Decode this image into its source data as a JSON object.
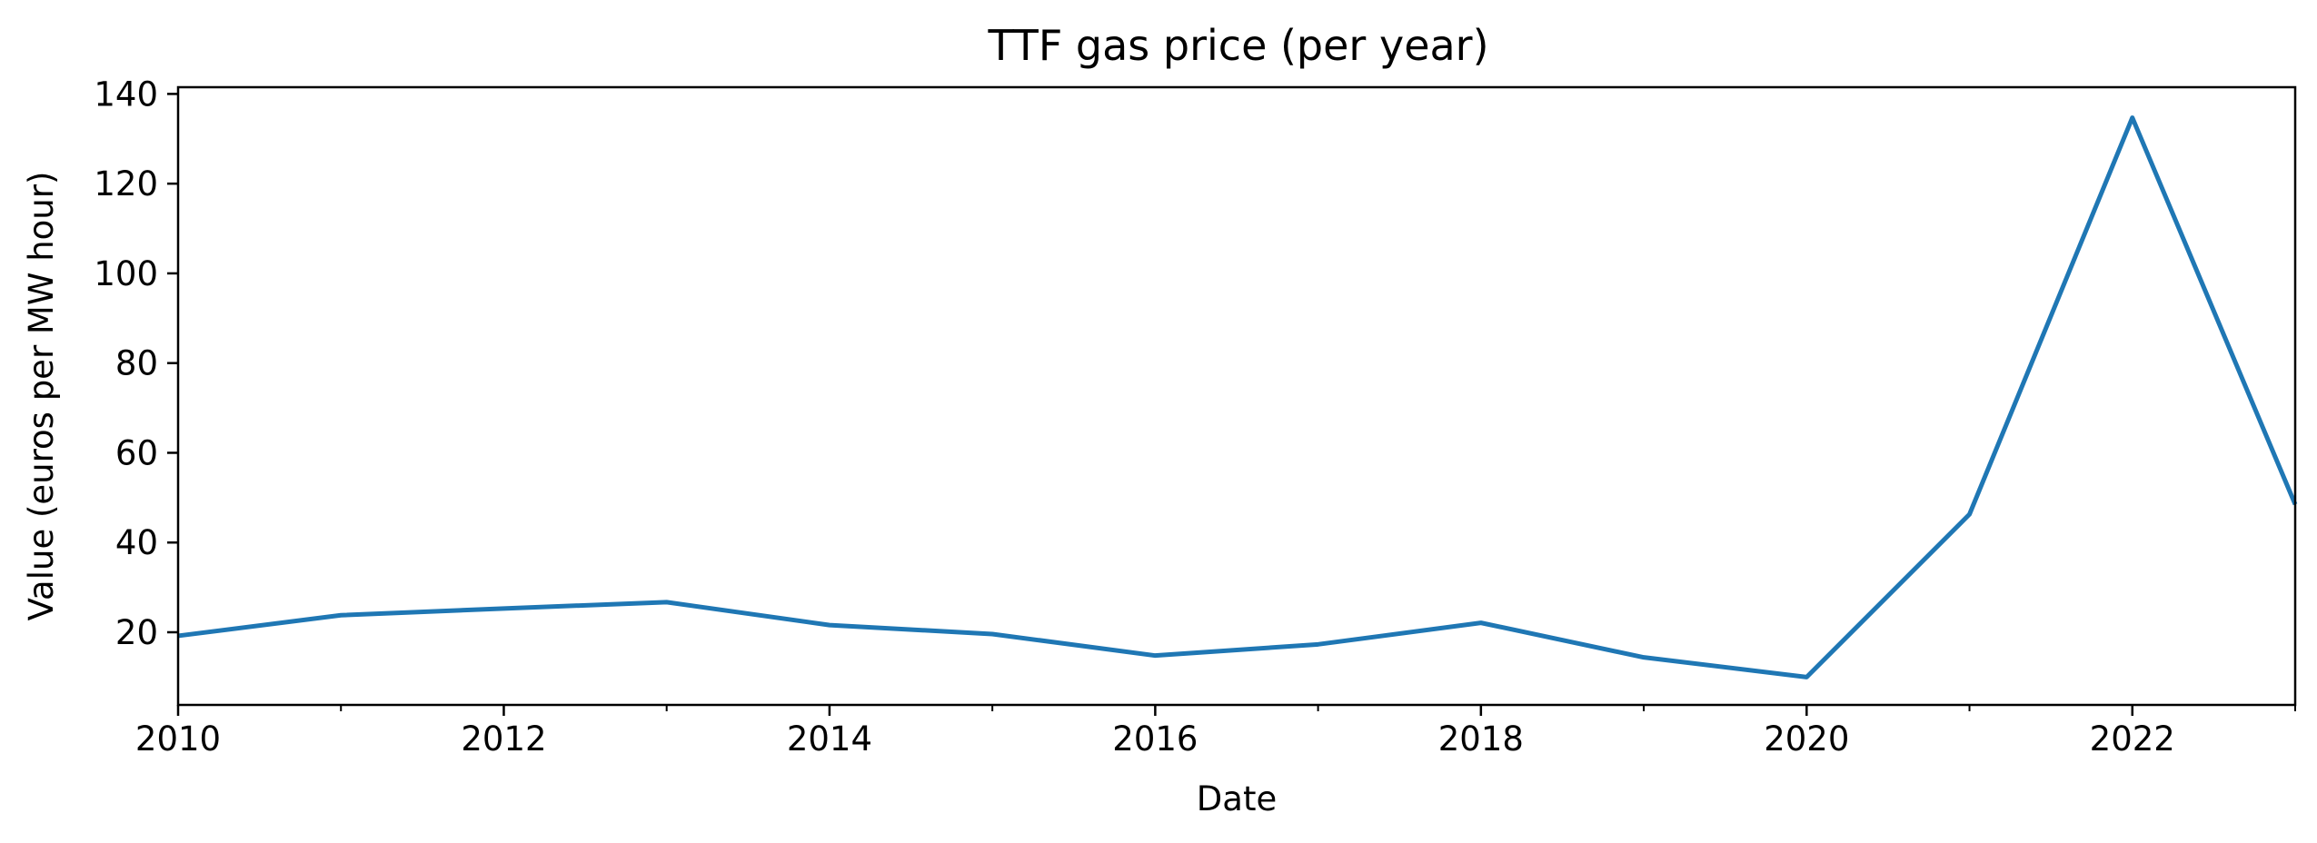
{
  "chart_data": {
    "type": "line",
    "title": "TTF gas price (per year)",
    "xlabel": "Date",
    "ylabel": "Value (euros per MW hour)",
    "x": [
      2010,
      2011,
      2012,
      2013,
      2014,
      2015,
      2016,
      2017,
      2018,
      2019,
      2020,
      2021,
      2022,
      2023
    ],
    "series": [
      {
        "values": [
          19.2,
          23.8,
          25.3,
          26.7,
          21.6,
          19.6,
          14.8,
          17.3,
          22.1,
          14.4,
          10.0,
          46.3,
          134.7,
          48.5
        ],
        "color": "#1f77b4"
      }
    ],
    "xlim": [
      2010,
      2023
    ],
    "ylim": [
      3.8,
      141.5
    ],
    "x_major_ticks": [
      2010,
      2012,
      2014,
      2016,
      2018,
      2020,
      2022
    ],
    "x_major_tick_labels": [
      "2010",
      "2012",
      "2014",
      "2016",
      "2018",
      "2020",
      "2022"
    ],
    "x_minor_ticks": [
      2011,
      2013,
      2015,
      2017,
      2019,
      2021,
      2023
    ],
    "y_ticks": [
      20,
      40,
      60,
      80,
      100,
      120,
      140
    ],
    "y_tick_labels": [
      "20",
      "40",
      "60",
      "80",
      "100",
      "120",
      "140"
    ],
    "grid": false,
    "legend": "none"
  }
}
